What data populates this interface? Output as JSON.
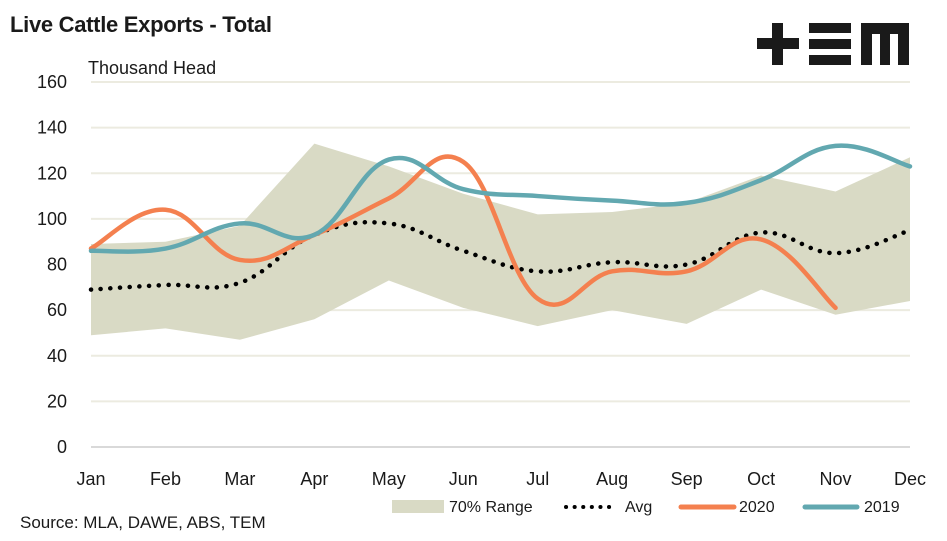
{
  "chart_data": {
    "type": "line",
    "title": "Live Cattle Exports - Total",
    "ylabel": "Thousand Head",
    "xlabel": "",
    "ylim": [
      0,
      160
    ],
    "yticks": [
      0,
      20,
      40,
      60,
      80,
      100,
      120,
      140,
      160
    ],
    "categories": [
      "Jan",
      "Feb",
      "Mar",
      "Apr",
      "May",
      "Jun",
      "Jul",
      "Aug",
      "Sep",
      "Oct",
      "Nov",
      "Dec"
    ],
    "grid": true,
    "legend_position": "bottom",
    "range_band": {
      "name": "70% Range",
      "color": "#d9dac5",
      "upper": [
        89,
        90,
        97,
        133,
        123,
        111,
        102,
        103,
        107,
        119,
        112,
        127
      ],
      "lower": [
        49,
        52,
        47,
        56,
        73,
        61,
        53,
        60,
        54,
        69,
        58,
        64
      ]
    },
    "series": [
      {
        "name": "Avg",
        "style": "dotted",
        "color": "#000000",
        "values": [
          69,
          71,
          72,
          93,
          98,
          86,
          77,
          81,
          80,
          94,
          85,
          95
        ]
      },
      {
        "name": "2020",
        "style": "solid",
        "color": "#f4804f",
        "values": [
          87,
          104,
          82,
          93,
          109,
          125,
          65,
          77,
          77,
          91,
          61,
          null
        ]
      },
      {
        "name": "2019",
        "style": "solid",
        "color": "#62a8b0",
        "values": [
          86,
          87,
          98,
          93,
          126,
          113,
          110,
          108,
          107,
          117,
          132,
          123
        ]
      }
    ]
  },
  "legend": {
    "items": [
      "70% Range",
      "Avg",
      "2020",
      "2019"
    ]
  },
  "source": "Source: MLA, DAWE, ABS, TEM",
  "logo": {
    "name": "TEM",
    "icon": "tem-logo-icon"
  }
}
